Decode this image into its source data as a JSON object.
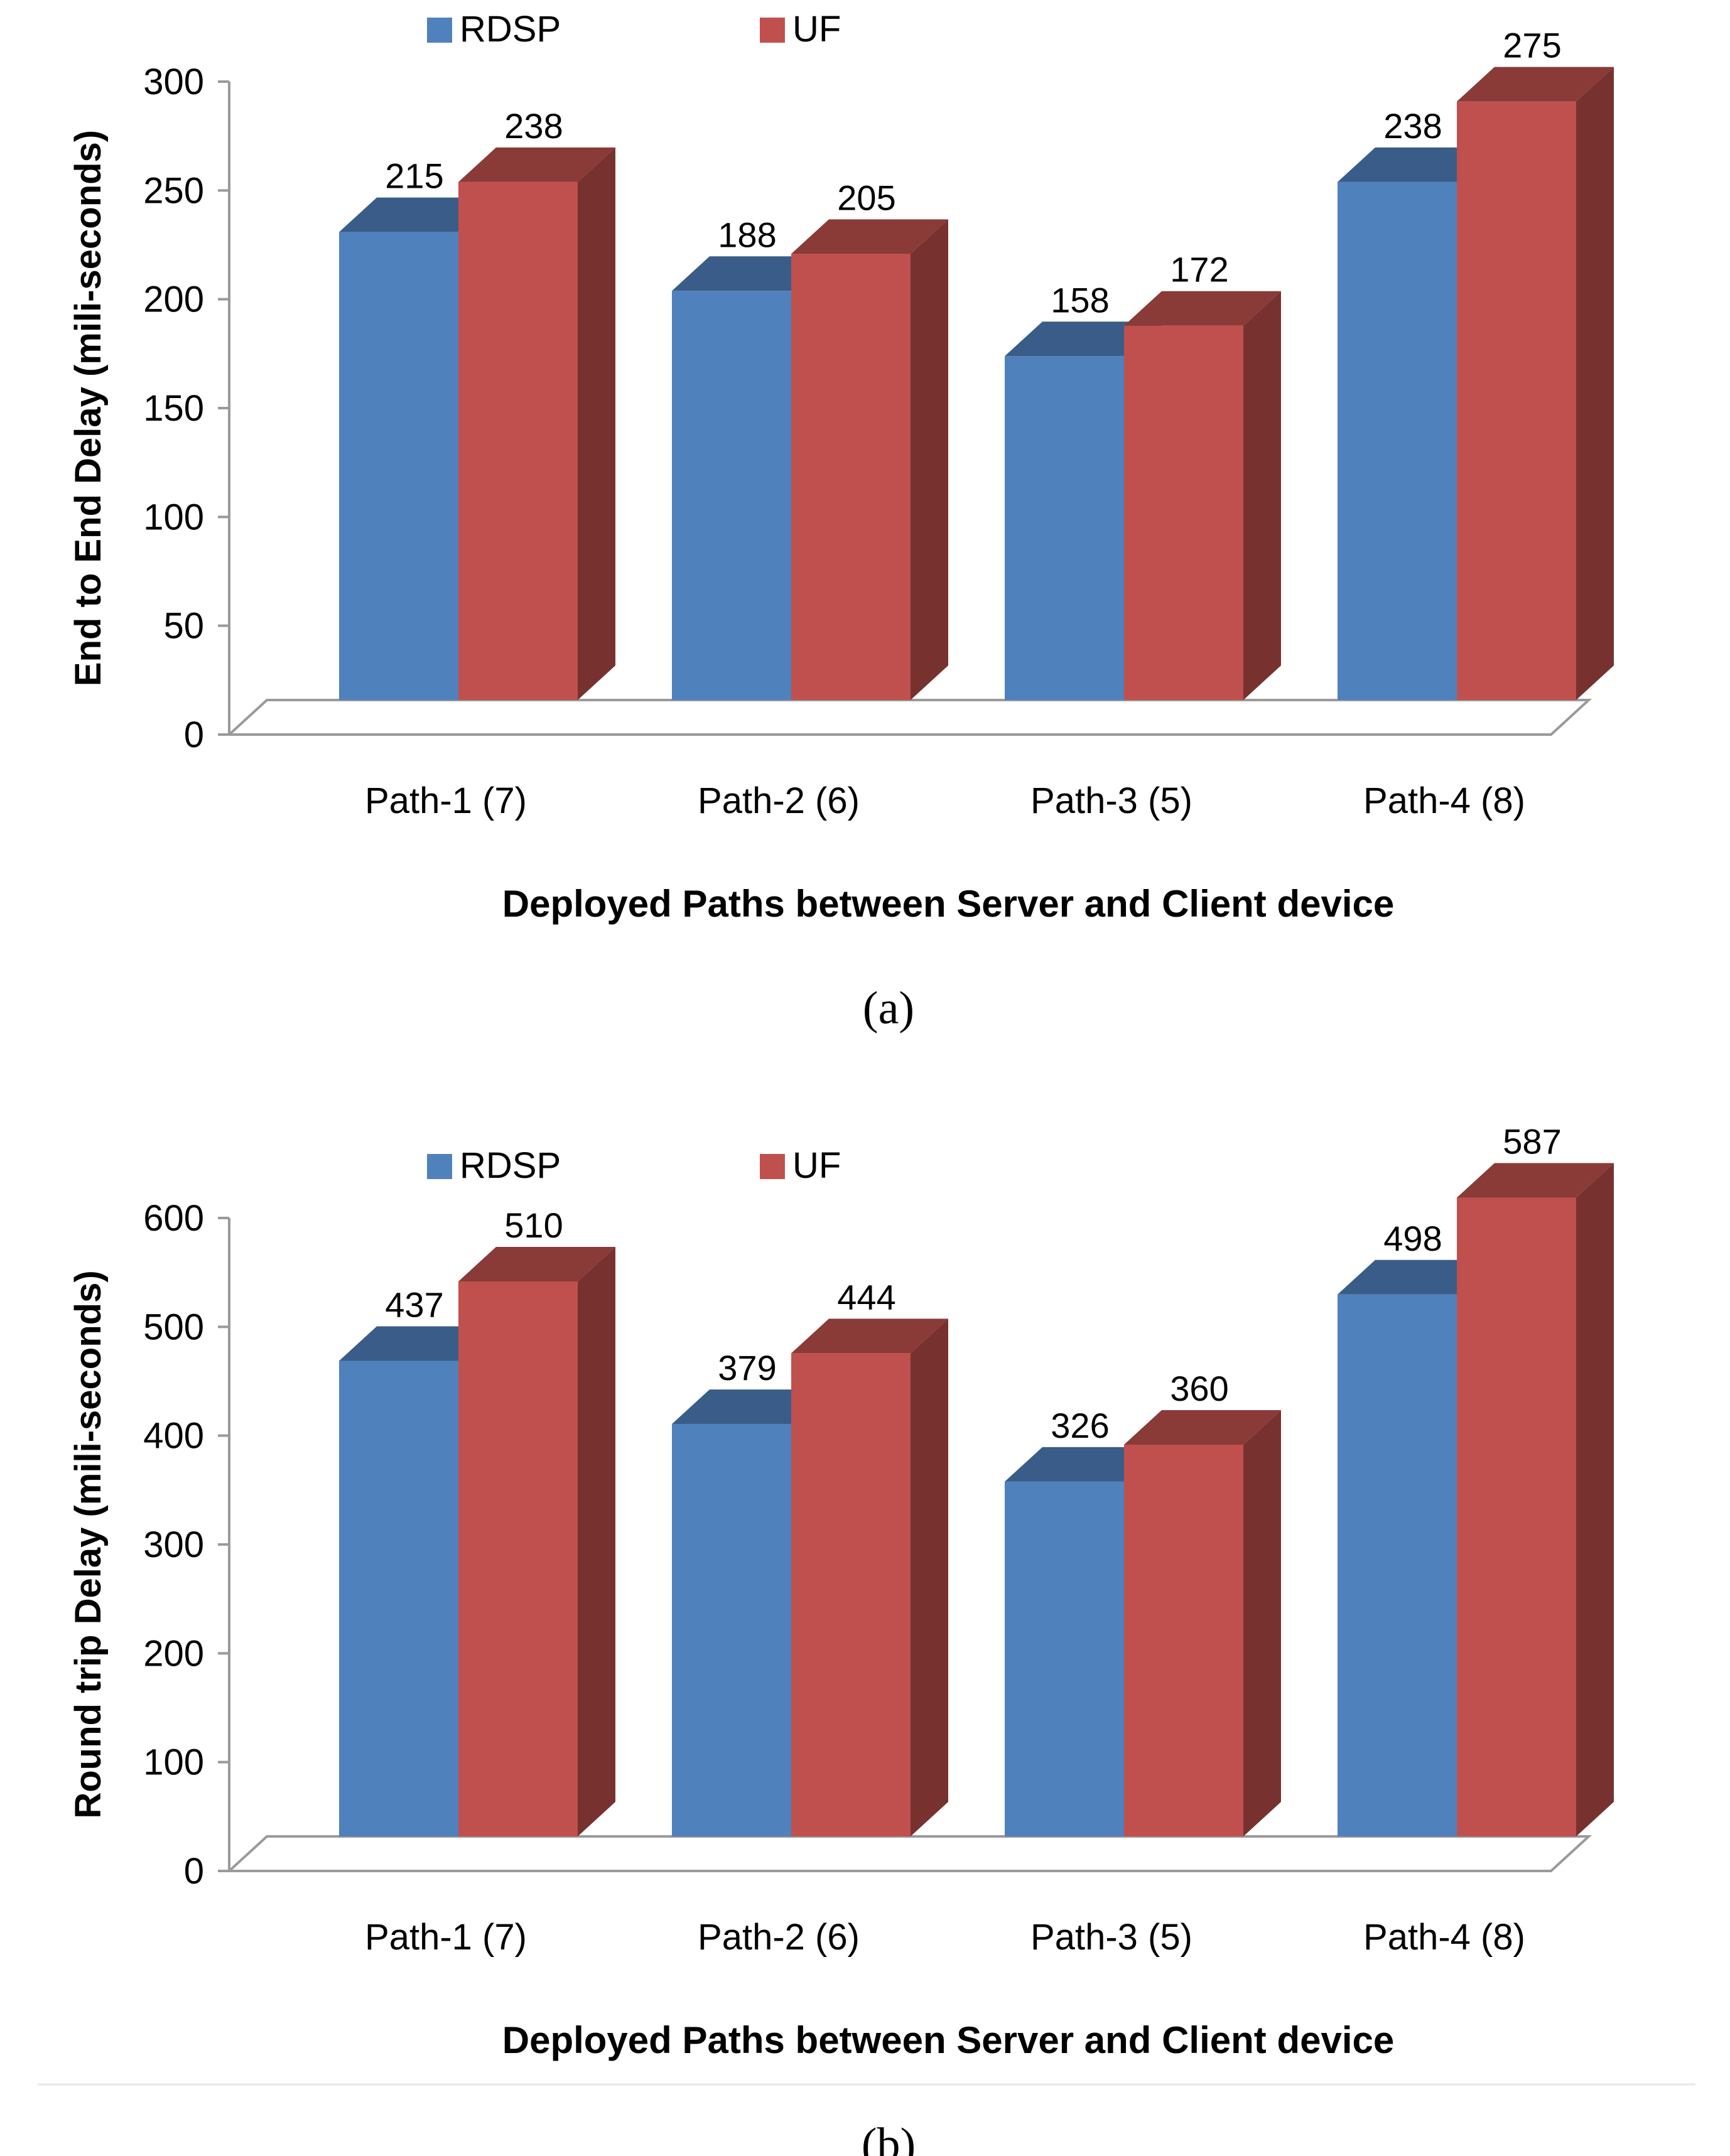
{
  "colors": {
    "RDSP": "#4f81bd",
    "UF": "#c0504d",
    "axis": "#9a9a9a",
    "text": "#000000"
  },
  "chart_data": [
    {
      "type": "bar",
      "panel_label": "(a)",
      "categories": [
        "Path-1 (7)",
        "Path-2 (6)",
        "Path-3 (5)",
        "Path-4 (8)"
      ],
      "series": [
        {
          "name": "RDSP",
          "values": [
            215,
            188,
            158,
            238
          ]
        },
        {
          "name": "UF",
          "values": [
            238,
            205,
            172,
            275
          ]
        }
      ],
      "xlabel": "Deployed Paths between Server and Client device",
      "ylabel": "End to End Delay (mili-seconds)",
      "ylim": [
        0,
        300
      ],
      "yticks": [
        0,
        50,
        100,
        150,
        200,
        250,
        300
      ],
      "legend": "top",
      "grid": false,
      "style": "3d-clustered-column"
    },
    {
      "type": "bar",
      "panel_label": "(b)",
      "categories": [
        "Path-1 (7)",
        "Path-2 (6)",
        "Path-3 (5)",
        "Path-4 (8)"
      ],
      "series": [
        {
          "name": "RDSP",
          "values": [
            437,
            379,
            326,
            498
          ]
        },
        {
          "name": "UF",
          "values": [
            510,
            444,
            360,
            587
          ]
        }
      ],
      "xlabel": "Deployed Paths between Server and Client device",
      "ylabel": "Round trip Delay (mili-seconds)",
      "ylim": [
        0,
        600
      ],
      "yticks": [
        0,
        100,
        200,
        300,
        400,
        500,
        600
      ],
      "legend": "top",
      "grid": false,
      "style": "3d-clustered-column"
    }
  ]
}
